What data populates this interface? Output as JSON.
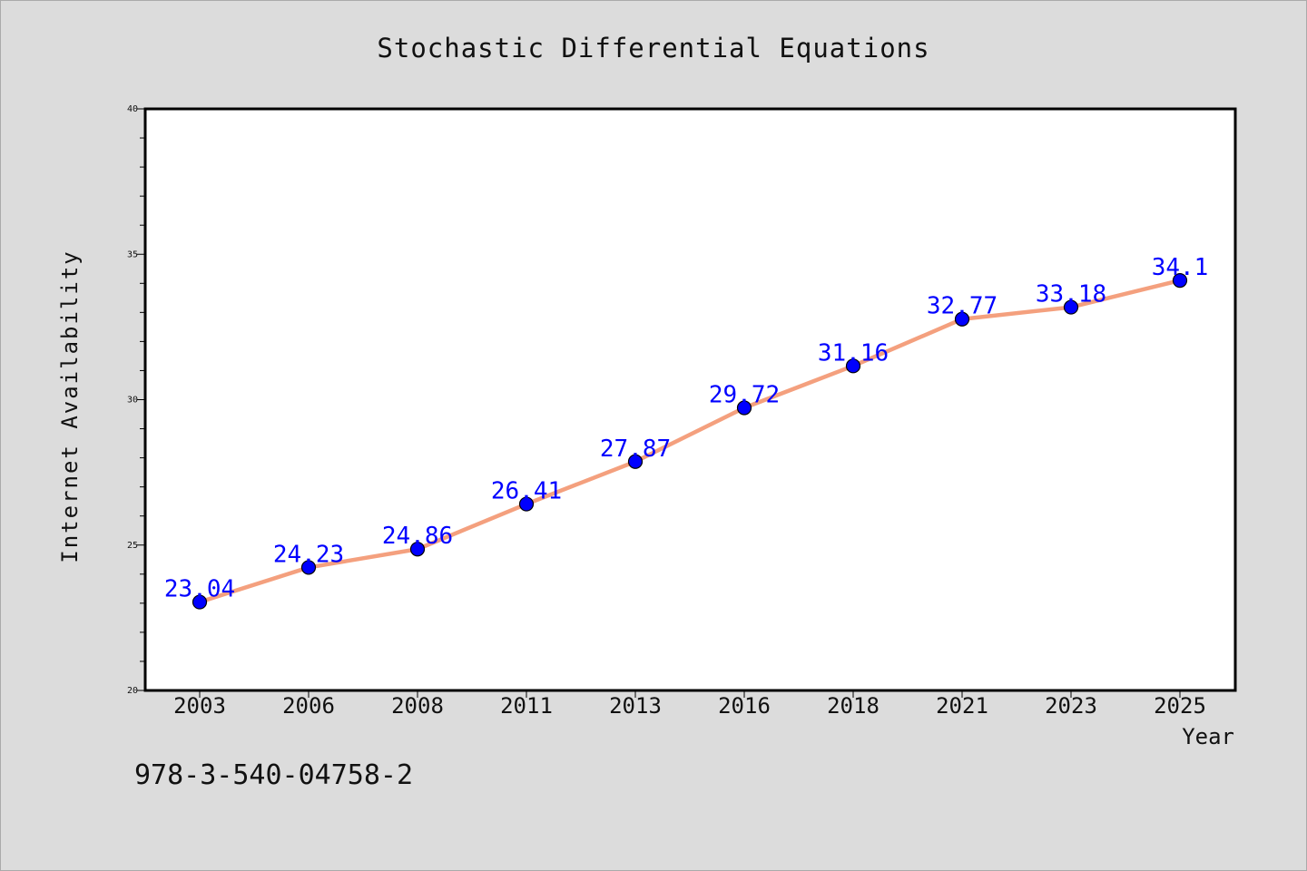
{
  "chart_data": {
    "type": "line",
    "title": "Stochastic Differential Equations",
    "xlabel": "Year",
    "ylabel": "Internet Availability",
    "categories": [
      "2003",
      "2006",
      "2008",
      "2011",
      "2013",
      "2016",
      "2018",
      "2021",
      "2023",
      "2025"
    ],
    "values": [
      23.04,
      24.23,
      24.86,
      26.41,
      27.87,
      29.72,
      31.16,
      32.77,
      33.18,
      34.1
    ],
    "data_labels": [
      "23.04",
      "24.23",
      "24.86",
      "26.41",
      "27.87",
      "29.72",
      "31.16",
      "32.77",
      "33.18",
      "34.1"
    ],
    "ylim": [
      20,
      40
    ],
    "yticks": [
      "20",
      "25",
      "30",
      "35",
      "40"
    ],
    "grid": false,
    "line_color": "#f4a07e",
    "marker_color": "#0000ff",
    "label_color": "#0000ff"
  },
  "footer": {
    "isbn": "978-3-540-04758-2"
  }
}
